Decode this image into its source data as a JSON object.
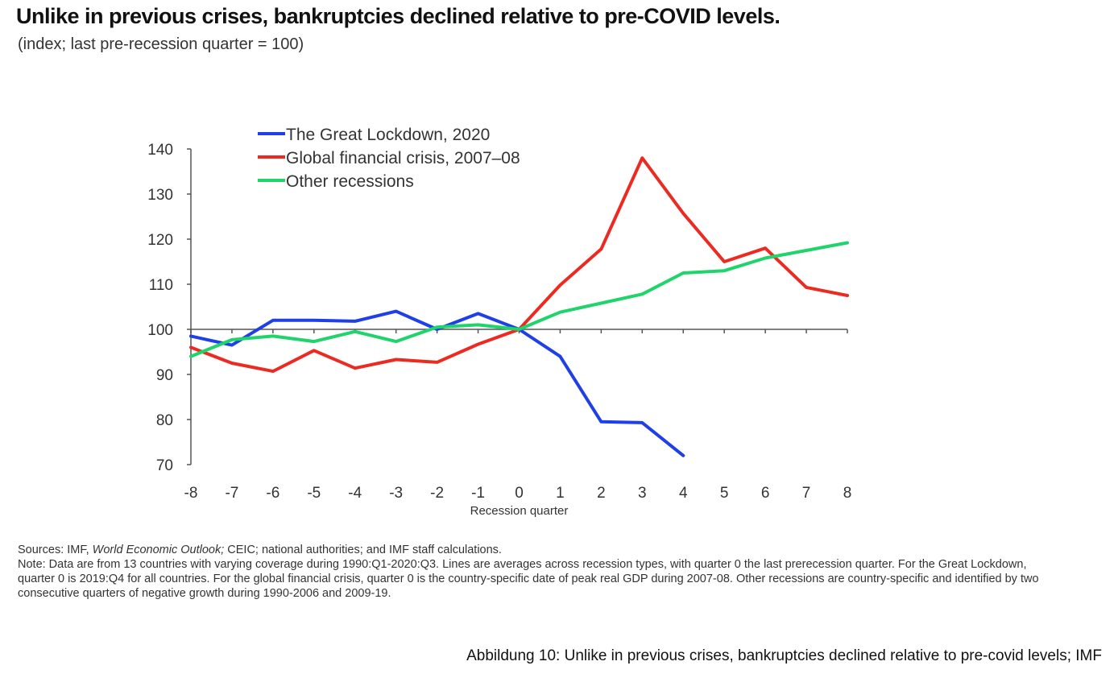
{
  "header": {
    "title": "Unlike in previous crises, bankruptcies declined relative to pre-COVID levels.",
    "subtitle": "(index; last pre-recession quarter = 100)"
  },
  "chart_data": {
    "type": "line",
    "title": "Unlike in previous crises, bankruptcies declined relative to pre-COVID levels.",
    "subtitle": "(index; last pre-recession quarter = 100)",
    "xlabel": "Recession quarter",
    "ylabel": "",
    "x": [
      -8,
      -7,
      -6,
      -5,
      -4,
      -3,
      -2,
      -1,
      0,
      1,
      2,
      3,
      4,
      5,
      6,
      7,
      8
    ],
    "x_tick_labels": [
      "-8",
      "-7",
      "-6",
      "-5",
      "-4",
      "-3",
      "-2",
      "-1",
      "0",
      "1",
      "2",
      "3",
      "4",
      "5",
      "6",
      "7",
      "8"
    ],
    "ylim": [
      70,
      140
    ],
    "y_ticks": [
      70,
      80,
      90,
      100,
      110,
      120,
      130,
      140
    ],
    "y_tick_labels": [
      "70",
      "80",
      "90",
      "100",
      "110",
      "120",
      "130",
      "140"
    ],
    "reference_line": 100,
    "grid": false,
    "legend_position": "top-left",
    "series": [
      {
        "name": "The Great Lockdown, 2020",
        "color": "#1f3fe8",
        "values": [
          98.5,
          96.5,
          102,
          102,
          101.8,
          104,
          100,
          103.5,
          100,
          94,
          79.5,
          79.3,
          72,
          null,
          null,
          null,
          null
        ]
      },
      {
        "name": "Global financial crisis, 2007–08",
        "color": "#ec2a22",
        "values": [
          96,
          92.5,
          90.7,
          95.3,
          91.4,
          93.3,
          92.7,
          96.7,
          100,
          109.8,
          117.8,
          138,
          125.7,
          115,
          118,
          109.3,
          107.5
        ]
      },
      {
        "name": "Other recessions",
        "color": "#1fd46b",
        "values": [
          94,
          97.7,
          98.5,
          97.3,
          99.5,
          97.3,
          100.5,
          101,
          100,
          103.8,
          105.8,
          107.8,
          112.5,
          113,
          115.8,
          117.5,
          119.2
        ]
      }
    ]
  },
  "notes": {
    "sources_prefix": "Sources: IMF, ",
    "sources_italic": "World Economic Outlook;",
    "sources_suffix": " CEIC; national authorities; and IMF staff calculations.",
    "note": "Note: Data are from 13 countries with varying coverage during 1990:Q1-2020:Q3. Lines are averages across recession types, with quarter 0 the last prerecession quarter. For the Great Lockdown, quarter 0 is 2019:Q4 for all countries. For the global financial crisis, quarter 0 is the country-specific date of peak real GDP during 2007-08. Other recessions are country-specific and identified by two consecutive quarters of negative growth during 1990-2006 and 2009-19."
  },
  "caption": "Abbildung 10: Unlike in previous crises, bankruptcies declined relative to pre-covid levels; IMF"
}
